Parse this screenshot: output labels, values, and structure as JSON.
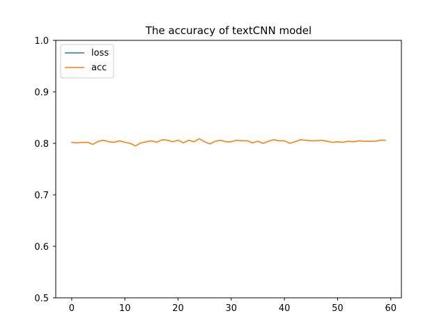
{
  "chart_data": {
    "type": "line",
    "title": "The accuracy of textCNN model",
    "xlabel": "",
    "ylabel": "",
    "xlim": [
      -3.0,
      62.0
    ],
    "ylim": [
      0.5,
      1.0
    ],
    "xticks": [
      0,
      10,
      20,
      30,
      40,
      50,
      60
    ],
    "yticks": [
      0.5,
      0.6,
      0.7,
      0.8,
      0.9,
      1.0
    ],
    "xtick_labels": [
      "0",
      "10",
      "20",
      "30",
      "40",
      "50",
      "60"
    ],
    "ytick_labels": [
      "0.5",
      "0.6",
      "0.7",
      "0.8",
      "0.9",
      "1.0"
    ],
    "grid": false,
    "legend_position": "upper-left",
    "series": [
      {
        "name": "loss",
        "color": "#1f77b4",
        "x": [],
        "values": []
      },
      {
        "name": "acc",
        "color": "#ff7f0e",
        "x": [
          0,
          1,
          2,
          3,
          4,
          5,
          6,
          7,
          8,
          9,
          10,
          11,
          12,
          13,
          14,
          15,
          16,
          17,
          18,
          19,
          20,
          21,
          22,
          23,
          24,
          25,
          26,
          27,
          28,
          29,
          30,
          31,
          32,
          33,
          34,
          35,
          36,
          37,
          38,
          39,
          40,
          41,
          42,
          43,
          44,
          45,
          46,
          47,
          48,
          49,
          50,
          51,
          52,
          53,
          54,
          55,
          56,
          57,
          58,
          59
        ],
        "values": [
          0.802,
          0.801,
          0.802,
          0.802,
          0.798,
          0.804,
          0.806,
          0.803,
          0.802,
          0.805,
          0.802,
          0.8,
          0.795,
          0.801,
          0.803,
          0.805,
          0.802,
          0.807,
          0.806,
          0.803,
          0.806,
          0.801,
          0.806,
          0.803,
          0.809,
          0.803,
          0.799,
          0.804,
          0.806,
          0.803,
          0.803,
          0.806,
          0.805,
          0.805,
          0.801,
          0.804,
          0.8,
          0.804,
          0.807,
          0.805,
          0.805,
          0.8,
          0.803,
          0.807,
          0.806,
          0.805,
          0.805,
          0.806,
          0.804,
          0.802,
          0.803,
          0.802,
          0.804,
          0.803,
          0.805,
          0.804,
          0.804,
          0.804,
          0.806,
          0.806
        ]
      }
    ]
  }
}
